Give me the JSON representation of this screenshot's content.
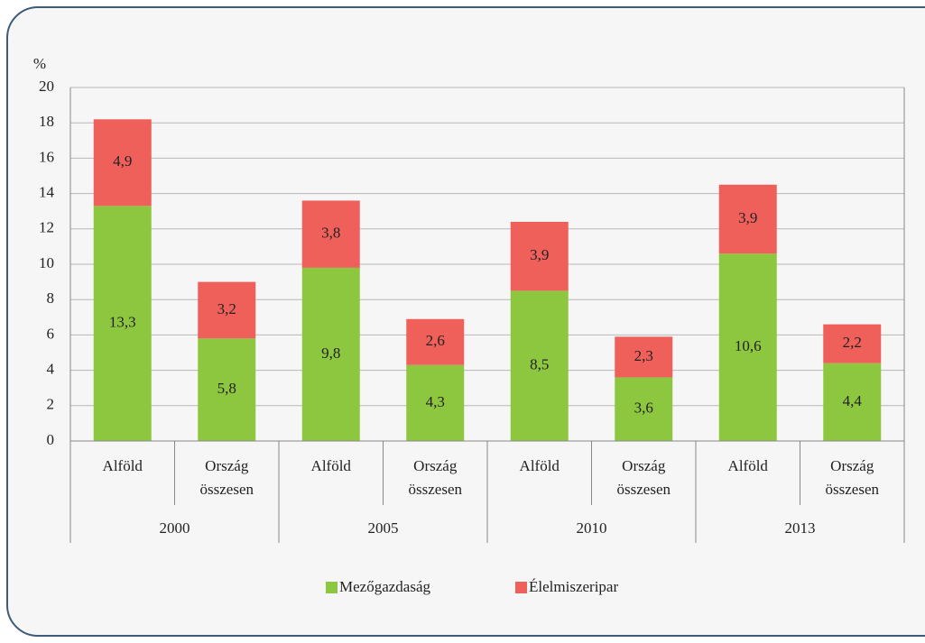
{
  "chart_data": {
    "type": "stacked_bar",
    "y_axis_label": "%",
    "categories": [
      "Alföld",
      "Ország összesen",
      "Alföld",
      "Ország összesen",
      "Alföld",
      "Ország összesen",
      "Alföld",
      "Ország összesen"
    ],
    "groups": [
      "2000",
      "2005",
      "2010",
      "2013"
    ],
    "series": [
      {
        "name": "Mezőgazdaság",
        "color": "#8dc63f",
        "values": [
          13.3,
          5.8,
          9.8,
          4.3,
          8.5,
          3.6,
          10.6,
          4.4
        ],
        "value_labels": [
          "13,3",
          "5,8",
          "9,8",
          "4,3",
          "8,5",
          "3,6",
          "10,6",
          "4,4"
        ]
      },
      {
        "name": "Élelmiszeripar",
        "color": "#f0605a",
        "values": [
          4.9,
          3.2,
          3.8,
          2.6,
          3.9,
          2.3,
          3.9,
          2.2
        ],
        "value_labels": [
          "4,9",
          "3,2",
          "3,8",
          "2,6",
          "3,9",
          "2,3",
          "3,9",
          "2,2"
        ]
      }
    ],
    "ylim": [
      0,
      20
    ],
    "yticks": [
      0,
      2,
      4,
      6,
      8,
      10,
      12,
      14,
      16,
      18,
      20
    ],
    "grid": true,
    "legend": "bottom"
  }
}
